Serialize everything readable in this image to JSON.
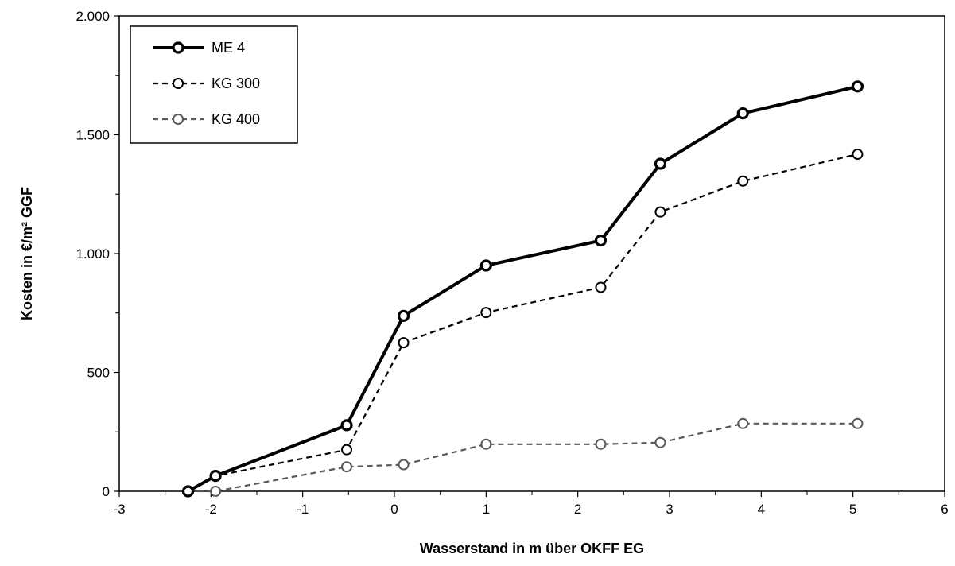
{
  "chart_data": {
    "type": "line",
    "title": "",
    "xlabel": "Wasserstand in m über OKFF EG",
    "ylabel": "Kosten in €/m² GGF",
    "xlim": [
      -3,
      6
    ],
    "ylim": [
      0,
      2000
    ],
    "x_ticks": [
      -3,
      -2,
      -1,
      0,
      1,
      2,
      3,
      4,
      5,
      6
    ],
    "x_tick_labels": [
      "-3",
      "-2",
      "-1",
      "0",
      "1",
      "2",
      "3",
      "4",
      "5",
      "6"
    ],
    "y_ticks": [
      0,
      500,
      1000,
      1500,
      2000
    ],
    "y_tick_labels": [
      "0",
      "500",
      "1.000",
      "1.500",
      "2.000"
    ],
    "grid": false,
    "legend_position": "top-left",
    "series": [
      {
        "name": "ME 4",
        "color": "#000000",
        "style": "solid-thick",
        "points": [
          [
            -2.25,
            0
          ],
          [
            -1.95,
            65
          ],
          [
            -0.52,
            278
          ],
          [
            0.1,
            738
          ],
          [
            1.0,
            950
          ],
          [
            2.25,
            1055
          ],
          [
            2.9,
            1378
          ],
          [
            3.8,
            1590
          ],
          [
            5.05,
            1703
          ]
        ]
      },
      {
        "name": "KG 300",
        "color": "#000000",
        "style": "dashed",
        "points": [
          [
            -2.25,
            0
          ],
          [
            -1.95,
            65
          ],
          [
            -0.52,
            175
          ],
          [
            0.1,
            625
          ],
          [
            1.0,
            752
          ],
          [
            2.25,
            858
          ],
          [
            2.9,
            1175
          ],
          [
            3.8,
            1305
          ],
          [
            5.05,
            1418
          ]
        ]
      },
      {
        "name": "KG 400",
        "color": "#595959",
        "style": "dashed",
        "points": [
          [
            -2.25,
            0
          ],
          [
            -1.95,
            0
          ],
          [
            -0.52,
            103
          ],
          [
            0.1,
            112
          ],
          [
            1.0,
            198
          ],
          [
            2.25,
            198
          ],
          [
            2.9,
            205
          ],
          [
            3.8,
            285
          ],
          [
            5.05,
            285
          ]
        ]
      }
    ]
  }
}
